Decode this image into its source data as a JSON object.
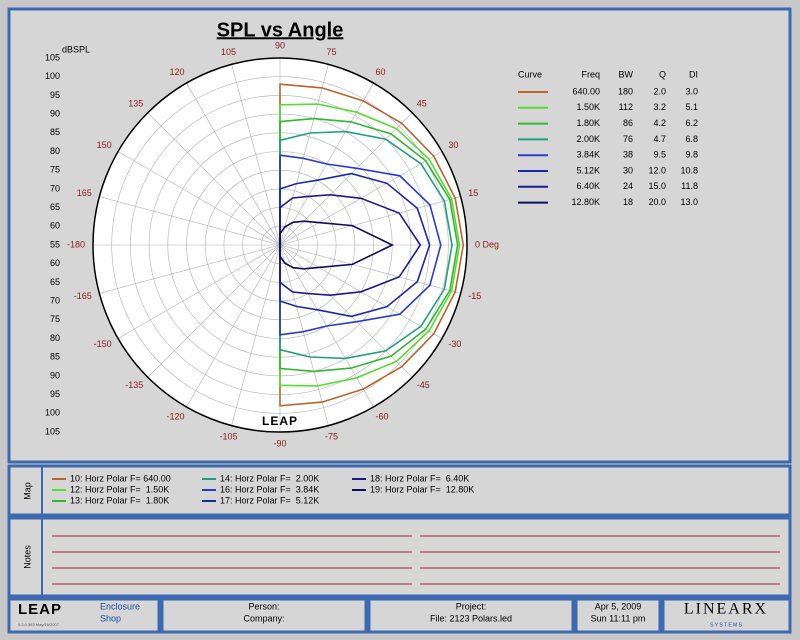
{
  "chart_data": {
    "type": "polar",
    "title": "SPL vs Angle",
    "r_label": "dBSPL",
    "rlim": [
      55,
      105
    ],
    "rticks": [
      55,
      60,
      65,
      70,
      75,
      80,
      85,
      90,
      95,
      100,
      105
    ],
    "theta": [
      90,
      75,
      60,
      45,
      30,
      15,
      0,
      -15,
      -30,
      -45,
      -60,
      -75,
      -90
    ],
    "thetaticks": [
      90,
      75,
      60,
      45,
      30,
      15,
      {
        "value": 0,
        "label": "0 Deg"
      },
      -15,
      -30,
      -45,
      -60,
      -75,
      -90,
      -105,
      -120,
      -135,
      -150,
      -165,
      -180,
      165,
      150,
      135,
      120,
      105
    ],
    "grid": true,
    "legend_columns": [
      "Curve",
      "Freq",
      "BW",
      "Q",
      "DI"
    ],
    "series": [
      {
        "name": "640.00",
        "bw": "180",
        "q": "2.0",
        "di": "3.0",
        "color": "#b8652a",
        "values": [
          98,
          98.5,
          99.5,
          101,
          102.5,
          103.5,
          104,
          103.5,
          102.5,
          101,
          99.5,
          98.5,
          98
        ]
      },
      {
        "name": "1.50K",
        "bw": "112",
        "q": "3.2",
        "di": "5.1",
        "color": "#55dd33",
        "values": [
          92.5,
          94,
          96,
          99,
          101,
          102.5,
          103,
          102.5,
          101,
          99,
          96,
          94,
          92.5
        ]
      },
      {
        "name": "1.80K",
        "bw": "86",
        "q": "4.2",
        "di": "6.2",
        "color": "#30b830",
        "values": [
          88,
          90,
          93,
          97,
          100,
          102,
          102.5,
          102,
          100,
          97,
          93,
          90,
          88
        ]
      },
      {
        "name": "2.00K",
        "bw": "76",
        "q": "4.7",
        "di": "6.8",
        "color": "#20a080",
        "values": [
          83,
          86,
          90,
          95,
          98.5,
          100.5,
          101,
          100.5,
          98.5,
          95,
          90,
          86,
          83
        ]
      },
      {
        "name": "3.84K",
        "bw": "38",
        "q": "9.5",
        "di": "9.8",
        "color": "#2a3ad0",
        "values": [
          79,
          79,
          80,
          84,
          92,
          96.5,
          98,
          96.5,
          92,
          84,
          80,
          79,
          79
        ]
      },
      {
        "name": "5.12K",
        "bw": "30",
        "q": "12.0",
        "di": "10.8",
        "color": "#1a28b0",
        "values": [
          70,
          72,
          75,
          82,
          88,
          93,
          95,
          93,
          88,
          82,
          75,
          72,
          70
        ]
      },
      {
        "name": "6.40K",
        "bw": "24",
        "q": "15.0",
        "di": "11.8",
        "color": "#1a1a90",
        "values": [
          65,
          68,
          70,
          74,
          80,
          88,
          92.5,
          88,
          80,
          74,
          70,
          68,
          65
        ]
      },
      {
        "name": "12.80K",
        "bw": "18",
        "q": "20.0",
        "di": "13.0",
        "color": "#0c0c60",
        "values": [
          58,
          60,
          62,
          64,
          67,
          75,
          85,
          75,
          67,
          64,
          62,
          60,
          58
        ]
      }
    ],
    "logo": "LEAP"
  },
  "map_panel": {
    "label": "Map",
    "items": [
      {
        "text": "10: Horz Polar F= 640.00",
        "color": "#b8652a"
      },
      {
        "text": "12: Horz Polar F=  1.50K",
        "color": "#55dd33"
      },
      {
        "text": "13: Horz Polar F=  1.80K",
        "color": "#30b830"
      },
      {
        "text": "14: Horz Polar F=  2.00K",
        "color": "#20a080"
      },
      {
        "text": "16: Horz Polar F=  3.84K",
        "color": "#2a3ad0"
      },
      {
        "text": "17: Horz Polar F=  5.12K",
        "color": "#1a28b0"
      },
      {
        "text": "18: Horz Polar F=  6.40K",
        "color": "#1a1a90"
      },
      {
        "text": "19: Horz Polar F=  12.80K",
        "color": "#0c0c60"
      }
    ]
  },
  "notes_panel": {
    "label": "Notes"
  },
  "footer": {
    "logo": "LEAP",
    "version": "5.2.0.363  May/16/2007",
    "product_1": "Enclosure",
    "product_2": "Shop",
    "person": "Person:",
    "company": "Company:",
    "project": "Project:",
    "file": "File: 2123 Polars.led",
    "date": "Apr  5, 2009",
    "time": "Sun 11:11 pm",
    "brand": "LINEARX",
    "brand_sub": "S Y S T E M S"
  }
}
